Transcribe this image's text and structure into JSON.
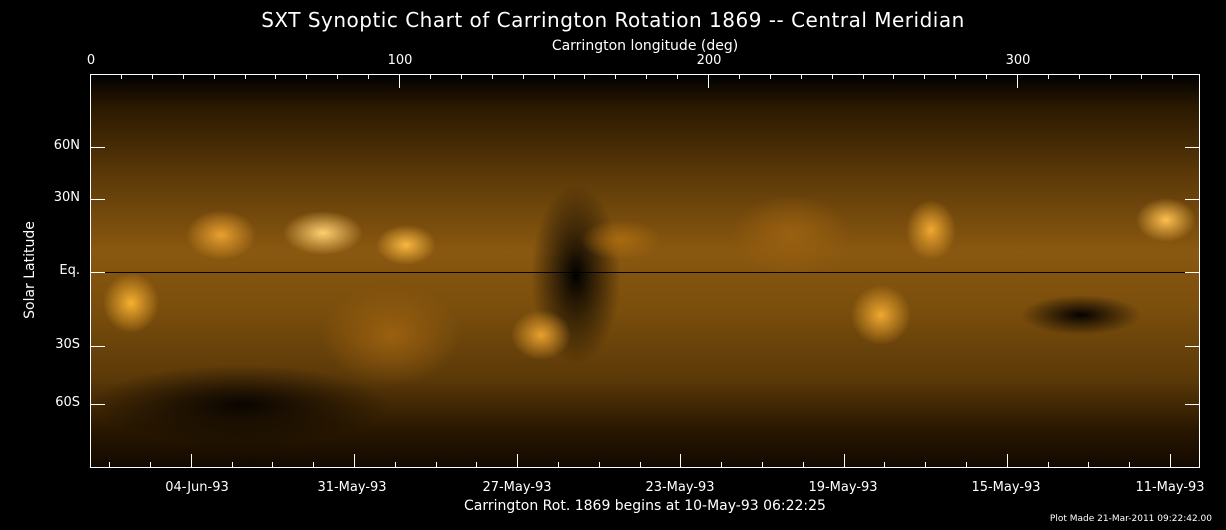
{
  "chart_data": {
    "type": "heatmap",
    "title": "SXT Synoptic Chart of Carrington Rotation 1869 -- Central Meridian",
    "xlabel_top": "Carrington longitude (deg)",
    "xlabel_bottom": "Carrington Rot. 1869 begins at 10-May-93 06:22:25",
    "ylabel": "Solar Latitude",
    "x_top_ticks": [
      "0",
      "100",
      "200",
      "300"
    ],
    "x_range": [
      0,
      360
    ],
    "y_ticks": [
      "60N",
      "30N",
      "Eq.",
      "30S",
      "60S"
    ],
    "x_bottom_ticks": [
      "04-Jun-93",
      "31-May-93",
      "27-May-93",
      "23-May-93",
      "19-May-93",
      "15-May-93",
      "11-May-93"
    ],
    "colormap": "black-to-gold (soft X-ray intensity)",
    "colors": {
      "bright": "#ffd070",
      "mid": "#8a5810",
      "dark": "#000000"
    }
  },
  "footer": {
    "plot_made": "Plot Made 21-Mar-2011 09:22:42.00"
  }
}
